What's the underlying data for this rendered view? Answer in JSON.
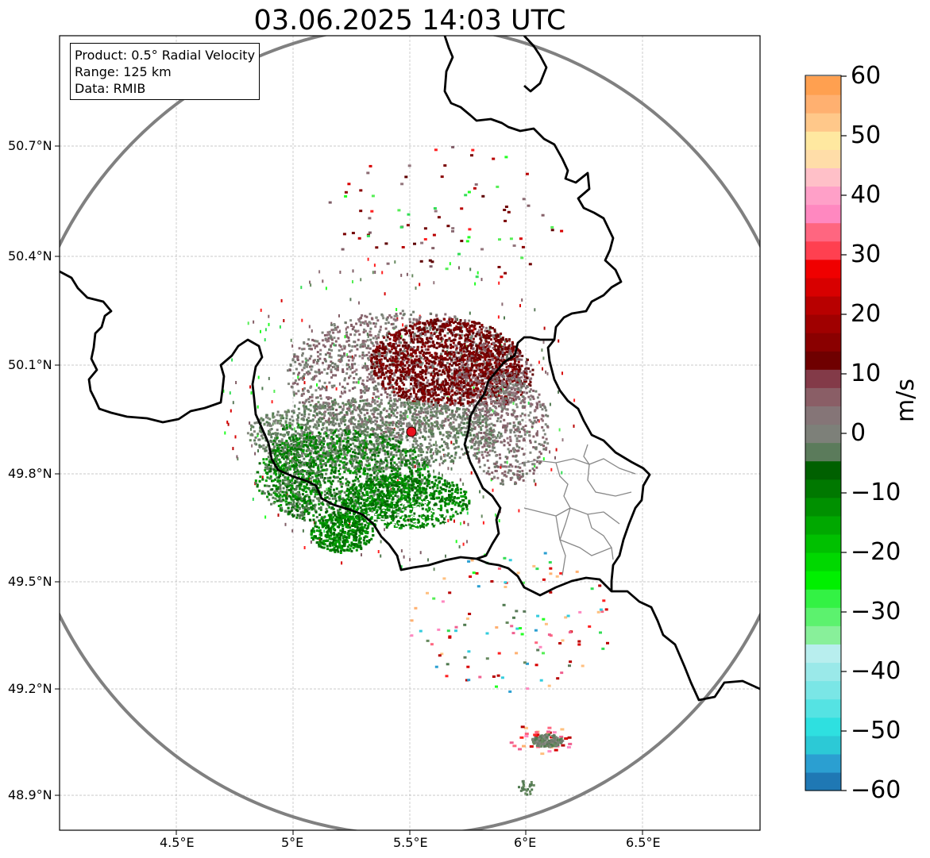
{
  "title": "03.06.2025 14:03 UTC",
  "info": {
    "product": "Product: 0.5° Radial Velocity",
    "range": "Range: 125 km",
    "source": "Data: RMIB"
  },
  "axes": {
    "x_ticks": [
      "4.5°E",
      "5°E",
      "5.5°E",
      "6°E",
      "6.5°E"
    ],
    "y_ticks": [
      "50.7°N",
      "50.4°N",
      "50.1°N",
      "49.8°N",
      "49.5°N",
      "49.2°N",
      "48.9°N"
    ],
    "grid": true
  },
  "colorbar": {
    "unit": "m/s",
    "ticks": [
      "60",
      "50",
      "40",
      "30",
      "20",
      "10",
      "0",
      "−10",
      "−20",
      "−30",
      "−40",
      "−50",
      "−60"
    ],
    "range": [
      -60,
      60
    ],
    "colors": [
      "#1f78b4",
      "#2b9fd1",
      "#2cc9d6",
      "#2ee0e0",
      "#55e3e3",
      "#7ae6e6",
      "#9ae9e9",
      "#b8eeee",
      "#88f09a",
      "#5cf26e",
      "#33f244",
      "#00f000",
      "#00d800",
      "#00c000",
      "#00a800",
      "#009000",
      "#007800",
      "#006000",
      "#5b7b5b",
      "#7d8079",
      "#857577",
      "#8a5e66",
      "#833a48",
      "#6f0000",
      "#8a0000",
      "#a00000",
      "#b80000",
      "#d80000",
      "#f00000",
      "#ff4050",
      "#ff6680",
      "#ff88c0",
      "#ffa0c8",
      "#ffc0c8",
      "#ffdda8",
      "#ffe8a0",
      "#ffc88a",
      "#ffb070",
      "#ffa050"
    ]
  },
  "radar": {
    "site": "Radar site",
    "site_color": "#e8101e"
  }
}
